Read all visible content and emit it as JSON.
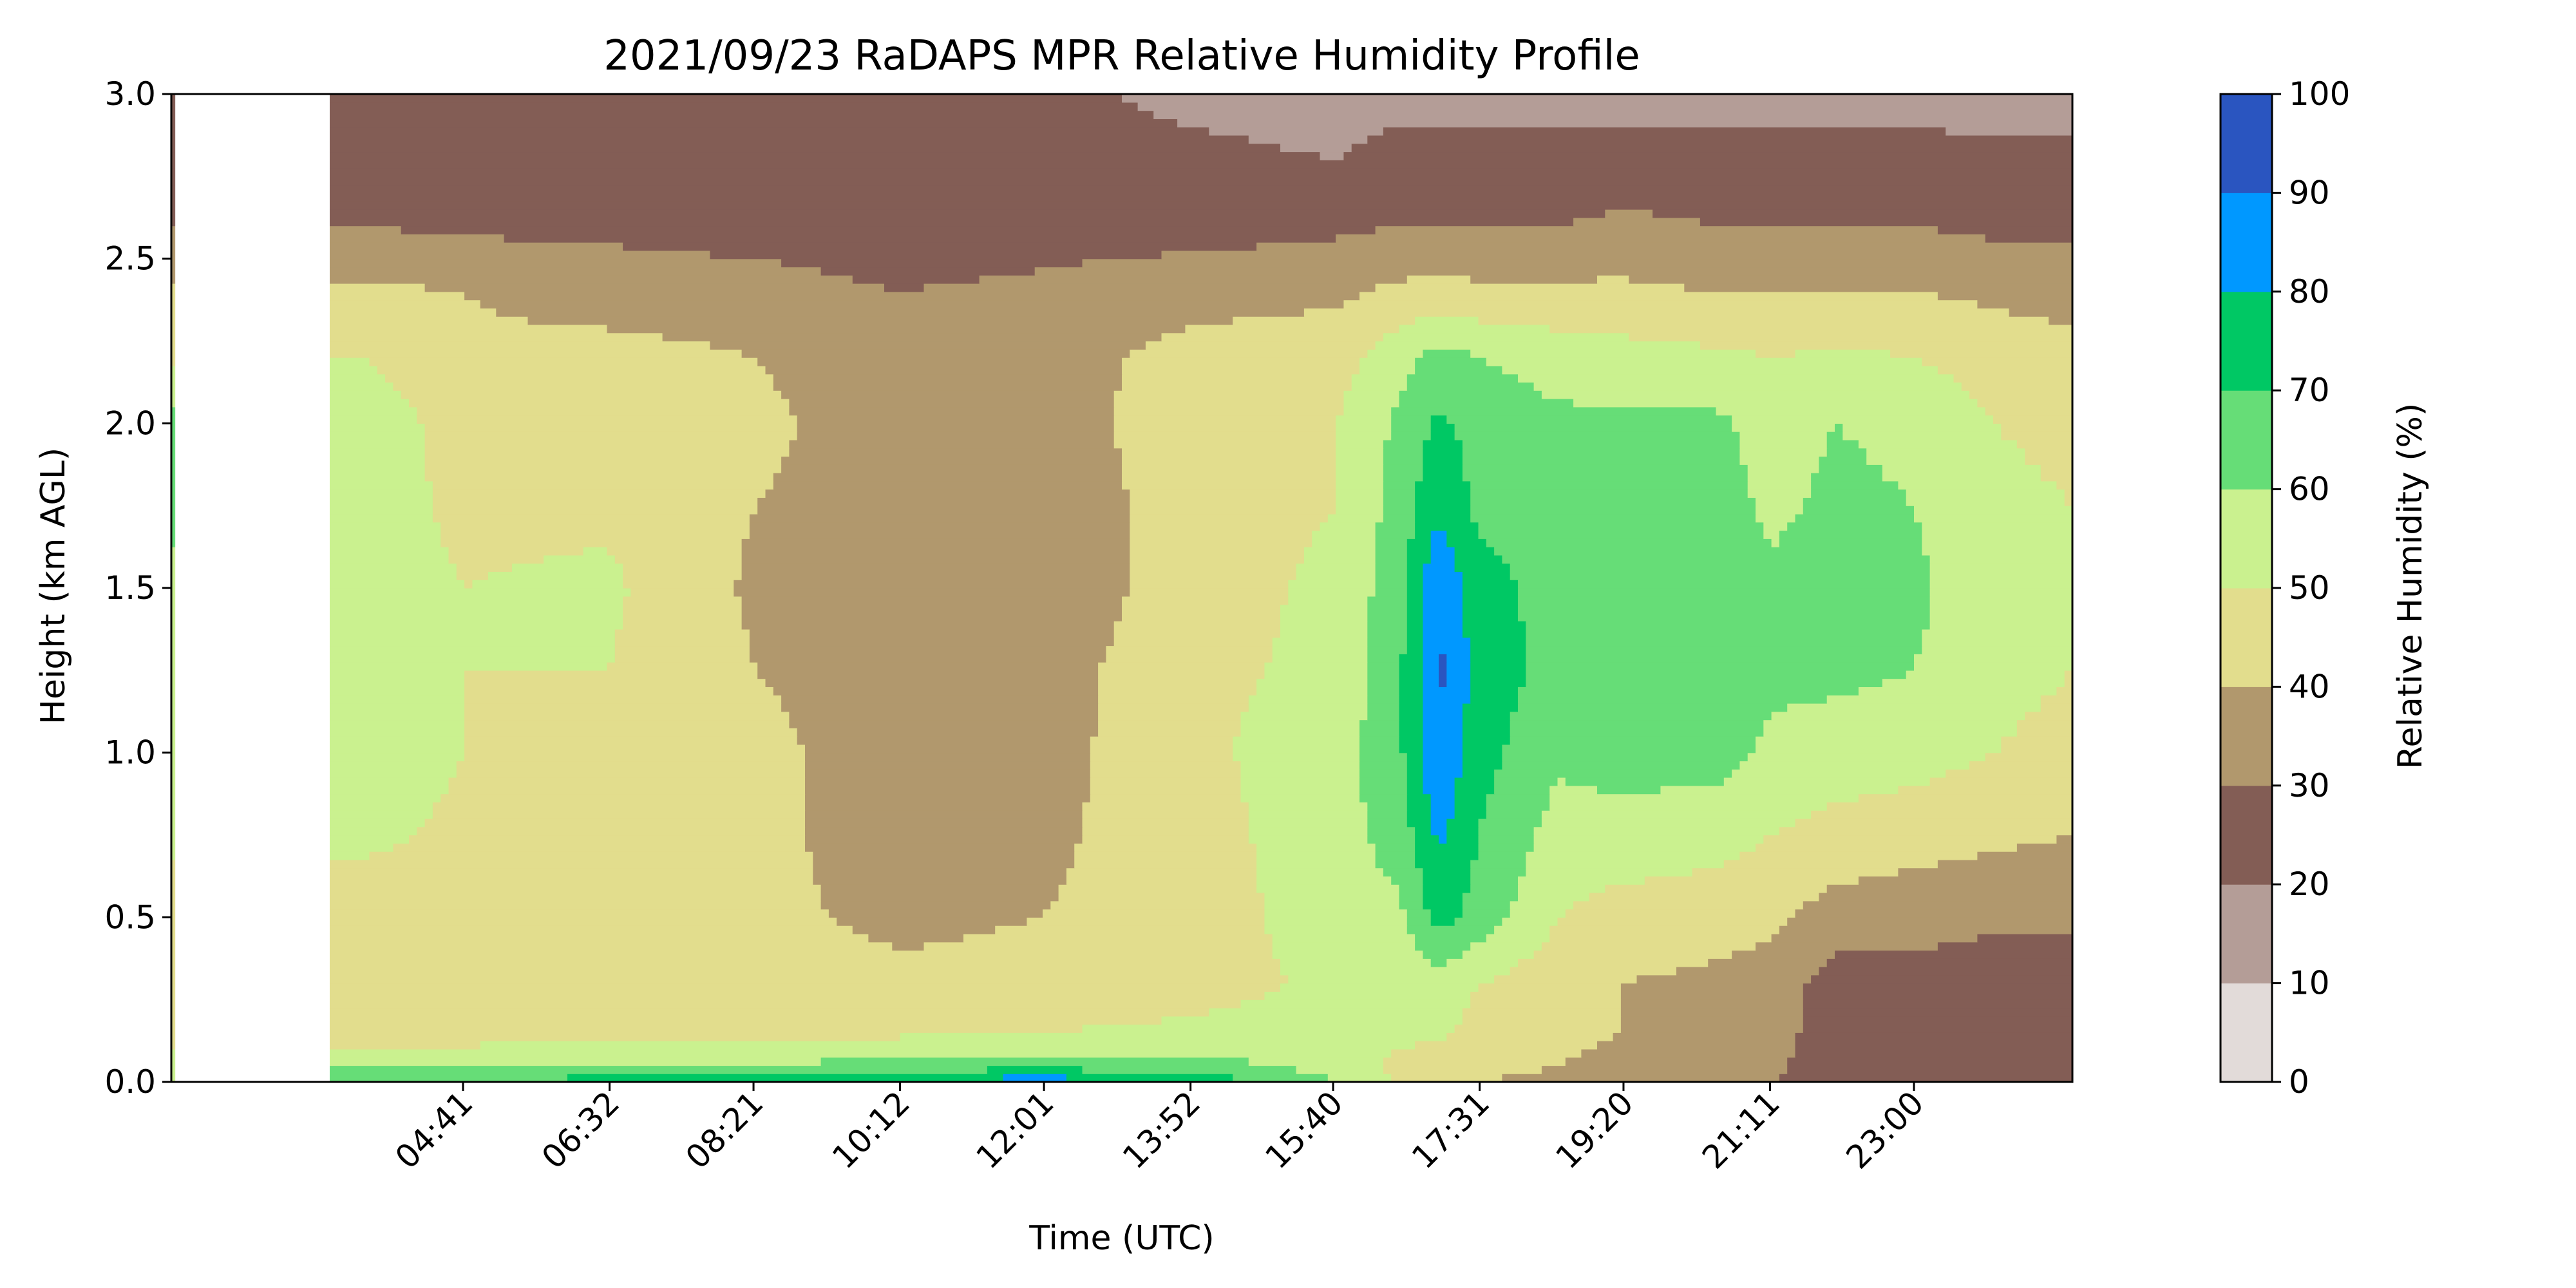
{
  "chart_data": {
    "type": "heatmap",
    "subtype": "filled-contour",
    "title": "2021/09/23 RaDAPS MPR Relative Humidity Profile",
    "xlabel": "Time (UTC)",
    "ylabel": "Height (km AGL)",
    "x_range_hours": [
      1.0,
      25.0
    ],
    "x_ticks": [
      {
        "label": "04:41",
        "hour": 4.683
      },
      {
        "label": "06:32",
        "hour": 6.533
      },
      {
        "label": "08:21",
        "hour": 8.35
      },
      {
        "label": "10:12",
        "hour": 10.2
      },
      {
        "label": "12:01",
        "hour": 12.017
      },
      {
        "label": "13:52",
        "hour": 13.867
      },
      {
        "label": "15:40",
        "hour": 15.667
      },
      {
        "label": "17:31",
        "hour": 17.517
      },
      {
        "label": "19:20",
        "hour": 19.333
      },
      {
        "label": "21:11",
        "hour": 21.183
      },
      {
        "label": "23:00",
        "hour": 23.0
      }
    ],
    "y_range": [
      0.0,
      3.0
    ],
    "y_ticks": [
      "0.0",
      "0.5",
      "1.0",
      "1.5",
      "2.0",
      "2.5",
      "3.0"
    ],
    "colorbar": {
      "label": "Relative Humidity (%)",
      "levels": [
        0,
        10,
        20,
        30,
        40,
        50,
        60,
        70,
        80,
        90,
        100
      ],
      "tick_labels": [
        "0",
        "10",
        "20",
        "30",
        "40",
        "50",
        "60",
        "70",
        "80",
        "90",
        "100"
      ],
      "colors": [
        "#e2dbd9",
        "#b49d97",
        "#835d55",
        "#b1986d",
        "#e2dd8d",
        "#caf18f",
        "#66dd77",
        "#00c864",
        "#0098ff",
        "#2a55c0"
      ]
    },
    "grid": false,
    "heights_km": [
      0.0,
      0.05,
      0.15,
      0.3,
      0.5,
      0.75,
      1.0,
      1.25,
      1.5,
      1.75,
      2.0,
      2.2,
      2.4,
      2.6,
      2.8,
      3.0
    ],
    "humidity_profiles": [
      {
        "hour": 1.0,
        "rh": [
          48,
          55,
          44,
          44,
          44,
          52,
          52,
          52,
          58,
          62,
          64,
          48,
          42,
          30,
          28,
          22
        ]
      },
      {
        "hour": 3.5,
        "rh": [
          72,
          58,
          45,
          44,
          44,
          52,
          55,
          55,
          54,
          54,
          55,
          50,
          42,
          30,
          26,
          24
        ]
      },
      {
        "hour": 4.7,
        "rh": [
          72,
          58,
          45,
          44,
          44,
          48,
          50,
          50,
          50,
          48,
          46,
          42,
          40,
          28,
          24,
          22
        ]
      },
      {
        "hour": 6.5,
        "rh": [
          74,
          60,
          46,
          44,
          44,
          46,
          48,
          50,
          52,
          48,
          46,
          44,
          35,
          28,
          24,
          22
        ]
      },
      {
        "hour": 8.4,
        "rh": [
          76,
          60,
          47,
          44,
          42,
          42,
          42,
          40,
          38,
          40,
          42,
          40,
          34,
          26,
          24,
          22
        ]
      },
      {
        "hour": 10.2,
        "rh": [
          82,
          64,
          48,
          42,
          38,
          36,
          36,
          36,
          36,
          35,
          35,
          34,
          30,
          24,
          22,
          22
        ]
      },
      {
        "hour": 12.0,
        "rh": [
          86,
          66,
          50,
          43,
          40,
          38,
          36,
          35,
          32,
          32,
          35,
          35,
          32,
          26,
          22,
          22
        ]
      },
      {
        "hour": 13.9,
        "rh": [
          78,
          64,
          52,
          46,
          44,
          46,
          48,
          48,
          46,
          46,
          46,
          44,
          36,
          26,
          22,
          18
        ]
      },
      {
        "hour": 15.7,
        "rh": [
          60,
          56,
          55,
          52,
          56,
          56,
          55,
          52,
          52,
          50,
          50,
          46,
          38,
          28,
          20,
          16
        ]
      },
      {
        "hour": 16.5,
        "rh": [
          48,
          48,
          52,
          52,
          58,
          64,
          68,
          68,
          66,
          64,
          62,
          56,
          42,
          30,
          24,
          16
        ]
      },
      {
        "hour": 17.0,
        "rh": [
          44,
          44,
          52,
          56,
          74,
          82,
          90,
          92,
          90,
          78,
          72,
          64,
          44,
          30,
          24,
          16
        ]
      },
      {
        "hour": 17.5,
        "rh": [
          40,
          42,
          46,
          50,
          66,
          70,
          74,
          76,
          74,
          68,
          66,
          60,
          42,
          30,
          24,
          16
        ]
      },
      {
        "hour": 18.5,
        "rh": [
          38,
          40,
          42,
          44,
          50,
          56,
          62,
          66,
          66,
          64,
          62,
          56,
          42,
          30,
          24,
          16
        ]
      },
      {
        "hour": 19.3,
        "rh": [
          35,
          38,
          40,
          40,
          46,
          56,
          64,
          68,
          68,
          64,
          62,
          54,
          42,
          32,
          24,
          16
        ]
      },
      {
        "hour": 20.5,
        "rh": [
          32,
          36,
          38,
          38,
          44,
          54,
          64,
          66,
          64,
          64,
          62,
          52,
          40,
          30,
          24,
          16
        ]
      },
      {
        "hour": 21.2,
        "rh": [
          30,
          32,
          34,
          36,
          42,
          50,
          58,
          62,
          62,
          58,
          56,
          50,
          40,
          30,
          24,
          16
        ]
      },
      {
        "hour": 22.0,
        "rh": [
          28,
          25,
          25,
          25,
          36,
          46,
          56,
          62,
          64,
          62,
          60,
          52,
          40,
          30,
          24,
          16
        ]
      },
      {
        "hour": 23.0,
        "rh": [
          26,
          24,
          24,
          26,
          34,
          44,
          54,
          60,
          62,
          60,
          58,
          50,
          40,
          30,
          24,
          16
        ]
      },
      {
        "hour": 24.0,
        "rh": [
          26,
          24,
          22,
          24,
          32,
          42,
          50,
          54,
          54,
          52,
          50,
          46,
          38,
          28,
          22,
          16
        ]
      },
      {
        "hour": 25.0,
        "rh": [
          30,
          26,
          22,
          24,
          32,
          40,
          46,
          50,
          52,
          50,
          48,
          44,
          36,
          28,
          22,
          16
        ]
      }
    ]
  }
}
